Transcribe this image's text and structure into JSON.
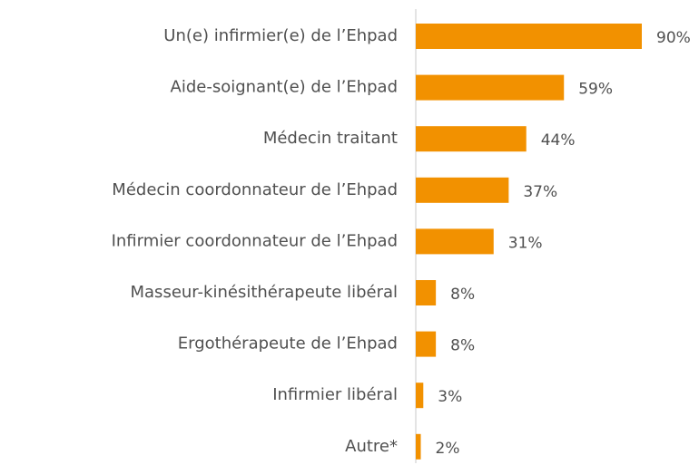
{
  "chart_data": {
    "type": "hbar",
    "categories": [
      "Un(e) infirmier(e) de l’Ehpad",
      "Aide-soignant(e) de l’Ehpad",
      "Médecin traitant",
      "Médecin coordonnateur de l’Ehpad",
      "Infirmier coordonnateur de l’Ehpad",
      "Masseur-kinésithérapeute libéral",
      "Ergothérapeute de l’Ehpad",
      "Infirmier libéral",
      "Autre*"
    ],
    "values": [
      90,
      59,
      44,
      37,
      31,
      8,
      8,
      3,
      2
    ],
    "value_labels": [
      "90%",
      "59%",
      "44%",
      "37%",
      "31%",
      "8%",
      "8%",
      "3%",
      "2%"
    ],
    "color": "#f29100"
  }
}
